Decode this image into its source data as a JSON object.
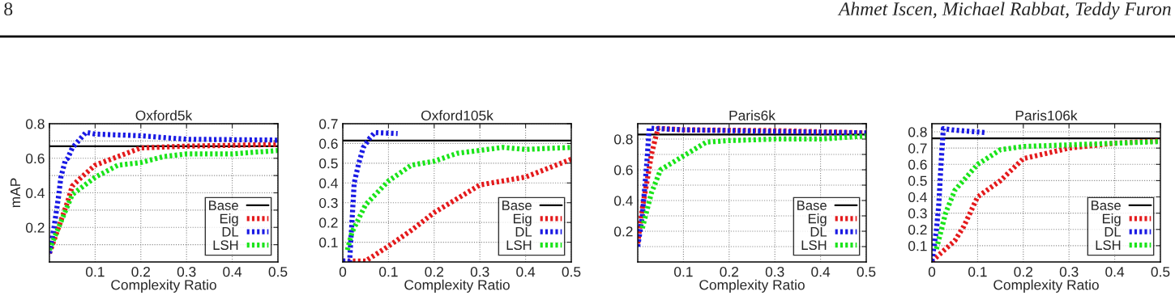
{
  "chart_data": [
    {
      "type": "line",
      "title": "Oxford5k",
      "xlabel": "Complexity Ratio",
      "ylabel": "mAP",
      "annotations": [
        "8",
        "Ahmet Iscen, Michael Rabbat, Teddy Furon"
      ],
      "xlim": [
        0,
        0.5
      ],
      "xticks": [
        {
          "value": 0,
          "label": null
        },
        0.1,
        0.2,
        0.3,
        0.4,
        0.5
      ],
      "ylim": [
        0,
        0.8
      ],
      "yticks": [
        {
          "value": 0.1,
          "label": null
        },
        0.2,
        {
          "value": 0.3,
          "label": null
        },
        0.4,
        {
          "value": 0.5,
          "label": null
        },
        0.6,
        {
          "value": 0.7,
          "label": null
        },
        0.8
      ],
      "grid": true,
      "legend": "bottom right",
      "line_style": "dotted",
      "marker": "none",
      "series": [
        {
          "name": "Base",
          "color": "#000000",
          "line_style": "solid",
          "x": [
            0,
            0.5
          ],
          "values": [
            0.67,
            0.67
          ]
        },
        {
          "name": "Eig",
          "color": "#e41a1c",
          "x": [
            0,
            0.02,
            0.04,
            0.05,
            0.07,
            0.1,
            0.15,
            0.2,
            0.3,
            0.5
          ],
          "values": [
            0.05,
            0.2,
            0.35,
            0.44,
            0.49,
            0.56,
            0.61,
            0.66,
            0.67,
            0.68
          ]
        },
        {
          "name": "DL",
          "color": "#1a1ae4",
          "x": [
            0,
            0.01,
            0.02,
            0.025,
            0.035,
            0.04,
            0.05,
            0.06,
            0.08,
            0.1,
            0.2,
            0.3,
            0.5
          ],
          "values": [
            0.05,
            0.2,
            0.38,
            0.49,
            0.59,
            0.6,
            0.66,
            0.69,
            0.75,
            0.74,
            0.73,
            0.71,
            0.705
          ]
        },
        {
          "name": "LSH",
          "color": "#1ae41a",
          "x": [
            0,
            0.02,
            0.05,
            0.08,
            0.1,
            0.15,
            0.2,
            0.25,
            0.3,
            0.4,
            0.5
          ],
          "values": [
            0.07,
            0.2,
            0.39,
            0.45,
            0.49,
            0.56,
            0.575,
            0.61,
            0.625,
            0.625,
            0.645
          ]
        }
      ]
    },
    {
      "type": "line",
      "title": "Oxford105k",
      "xlabel": "Complexity Ratio",
      "xlim": [
        0,
        0.5
      ],
      "xticks": [
        0,
        0.1,
        0.2,
        0.3,
        0.4,
        0.5
      ],
      "ylim": [
        0,
        0.7
      ],
      "yticks": [
        0.1,
        0.2,
        0.3,
        0.4,
        0.5,
        0.6,
        0.7
      ],
      "grid": true,
      "legend": "bottom right",
      "line_style": "dotted",
      "marker": "none",
      "series": [
        {
          "name": "Base",
          "color": "#000000",
          "line_style": "solid",
          "x": [
            0,
            0.5
          ],
          "values": [
            0.615,
            0.615
          ]
        },
        {
          "name": "Eig",
          "color": "#e41a1c",
          "x": [
            0,
            0.05,
            0.1,
            0.15,
            0.2,
            0.3,
            0.4,
            0.5
          ],
          "values": [
            0.005,
            0.005,
            0.08,
            0.16,
            0.25,
            0.39,
            0.43,
            0.52
          ]
        },
        {
          "name": "DL",
          "color": "#1a1ae4",
          "x": [
            0,
            0.015,
            0.02,
            0.025,
            0.035,
            0.045,
            0.06,
            0.07,
            0.12
          ],
          "values": [
            0.005,
            0.005,
            0.2,
            0.4,
            0.5,
            0.58,
            0.63,
            0.655,
            0.65
          ]
        },
        {
          "name": "LSH",
          "color": "#1ae41a",
          "x": [
            0.01,
            0.02,
            0.05,
            0.1,
            0.15,
            0.2,
            0.25,
            0.3,
            0.35,
            0.4,
            0.5
          ],
          "values": [
            0.06,
            0.15,
            0.29,
            0.41,
            0.49,
            0.51,
            0.55,
            0.565,
            0.58,
            0.57,
            0.58
          ]
        }
      ]
    },
    {
      "type": "line",
      "title": "Paris6k",
      "xlabel": "Complexity Ratio",
      "xlim": [
        0,
        0.5
      ],
      "xticks": [
        {
          "value": 0,
          "label": null
        },
        0.1,
        0.2,
        0.3,
        0.4,
        0.5
      ],
      "ylim": [
        0,
        0.9
      ],
      "yticks": [
        {
          "value": 0.1,
          "label": null
        },
        0.2,
        {
          "value": 0.3,
          "label": null
        },
        0.4,
        {
          "value": 0.5,
          "label": null
        },
        0.6,
        {
          "value": 0.7,
          "label": null
        },
        0.8,
        {
          "value": 0.9,
          "label": null
        }
      ],
      "grid": true,
      "legend": "bottom right",
      "line_style": "dotted",
      "marker": "none",
      "series": [
        {
          "name": "Base",
          "color": "#000000",
          "line_style": "solid",
          "x": [
            0,
            0.5
          ],
          "values": [
            0.83,
            0.83
          ]
        },
        {
          "name": "Eig",
          "color": "#e41a1c",
          "x": [
            0,
            0.01,
            0.02,
            0.03,
            0.04,
            0.045,
            0.1,
            0.3,
            0.5
          ],
          "values": [
            0.12,
            0.35,
            0.52,
            0.7,
            0.82,
            0.87,
            0.86,
            0.855,
            0.84
          ]
        },
        {
          "name": "DL",
          "color": "#1a1ae4",
          "x": [
            0,
            0.01,
            0.02,
            0.025,
            0.03,
            0.1,
            0.5
          ],
          "values": [
            0.1,
            0.3,
            0.65,
            0.87,
            0.87,
            0.86,
            0.84
          ]
        },
        {
          "name": "LSH",
          "color": "#1ae41a",
          "x": [
            0.01,
            0.03,
            0.05,
            0.1,
            0.15,
            0.2,
            0.3,
            0.4,
            0.5
          ],
          "values": [
            0.22,
            0.45,
            0.6,
            0.69,
            0.78,
            0.79,
            0.8,
            0.8,
            0.82
          ]
        }
      ]
    },
    {
      "type": "line",
      "title": "Paris106k",
      "xlabel": "Complexity Ratio",
      "xlim": [
        0,
        0.5
      ],
      "xticks": [
        0,
        0.1,
        0.2,
        0.3,
        0.4,
        0.5
      ],
      "ylim": [
        0,
        0.85
      ],
      "yticks": [
        0.1,
        0.2,
        0.3,
        0.4,
        0.5,
        0.6,
        0.7,
        0.8
      ],
      "grid": true,
      "legend": "bottom right",
      "line_style": "dotted",
      "marker": "none",
      "series": [
        {
          "name": "Base",
          "color": "#000000",
          "line_style": "solid",
          "x": [
            0,
            0.5
          ],
          "values": [
            0.76,
            0.76
          ]
        },
        {
          "name": "Eig",
          "color": "#e41a1c",
          "x": [
            0,
            0.03,
            0.05,
            0.07,
            0.1,
            0.15,
            0.2,
            0.3,
            0.4,
            0.5
          ],
          "values": [
            0.005,
            0.08,
            0.13,
            0.22,
            0.4,
            0.5,
            0.635,
            0.7,
            0.73,
            0.745
          ]
        },
        {
          "name": "DL",
          "color": "#1a1ae4",
          "x": [
            0,
            0.01,
            0.015,
            0.02,
            0.025,
            0.05,
            0.12
          ],
          "values": [
            0.005,
            0.2,
            0.35,
            0.6,
            0.82,
            0.81,
            0.795
          ]
        },
        {
          "name": "LSH",
          "color": "#1ae41a",
          "x": [
            0.01,
            0.03,
            0.05,
            0.1,
            0.15,
            0.2,
            0.3,
            0.5
          ],
          "values": [
            0.08,
            0.3,
            0.44,
            0.6,
            0.69,
            0.71,
            0.72,
            0.74
          ]
        }
      ]
    }
  ]
}
